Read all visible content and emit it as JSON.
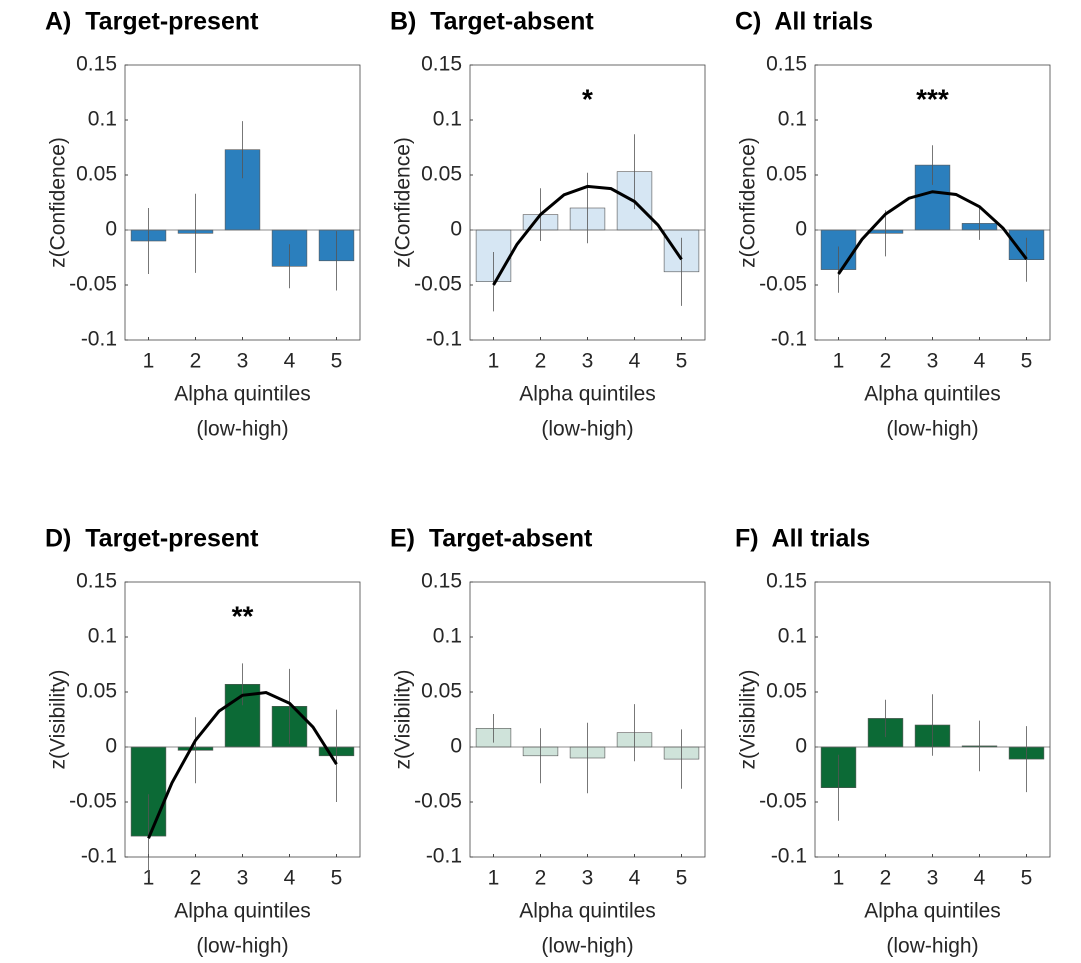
{
  "chart_data": [
    {
      "type": "bar",
      "title": "A)  Target-present",
      "ylabel": "z(Confidence)",
      "xlabel": [
        "Alpha quintiles",
        "(low-high)"
      ],
      "categories": [
        1,
        2,
        3,
        4,
        5
      ],
      "values": [
        -0.01,
        -0.003,
        0.073,
        -0.033,
        -0.028
      ],
      "errors": [
        0.03,
        0.036,
        0.026,
        0.02,
        0.027
      ],
      "color": "#2b7fbd",
      "ylim": [
        -0.1,
        0.15
      ],
      "yticks": [
        -0.1,
        -0.05,
        0,
        0.05,
        0.1,
        0.15
      ]
    },
    {
      "type": "bar",
      "title": "B)  Target-absent",
      "ylabel": "z(Confidence)",
      "xlabel": [
        "Alpha quintiles",
        "(low-high)"
      ],
      "categories": [
        1,
        2,
        3,
        4,
        5
      ],
      "values": [
        -0.047,
        0.014,
        0.02,
        0.053,
        -0.038
      ],
      "errors": [
        0.027,
        0.024,
        0.032,
        0.034,
        0.031
      ],
      "color": "#d6e6f3",
      "ylim": [
        -0.1,
        0.15
      ],
      "yticks": [
        -0.1,
        -0.05,
        0,
        0.05,
        0.1,
        0.15
      ],
      "annotation": "*",
      "fit": {
        "x": [
          1,
          1.5,
          2,
          2.5,
          3,
          3.5,
          4,
          4.5,
          5
        ],
        "y": [
          -0.05,
          -0.013,
          0.014,
          0.032,
          0.0396,
          0.0376,
          0.0259,
          0.0045,
          -0.0267
        ]
      }
    },
    {
      "type": "bar",
      "title": "C)  All trials",
      "ylabel": "z(Confidence)",
      "xlabel": [
        "Alpha quintiles",
        "(low-high)"
      ],
      "categories": [
        1,
        2,
        3,
        4,
        5
      ],
      "values": [
        -0.036,
        -0.003,
        0.059,
        0.006,
        -0.027
      ],
      "errors": [
        0.021,
        0.021,
        0.018,
        0.015,
        0.02
      ],
      "color": "#2b7fbd",
      "ylim": [
        -0.1,
        0.15
      ],
      "yticks": [
        -0.1,
        -0.05,
        0,
        0.05,
        0.1,
        0.15
      ],
      "annotation": "***",
      "fit": {
        "x": [
          1,
          1.5,
          2,
          2.5,
          3,
          3.5,
          4,
          4.5,
          5
        ],
        "y": [
          -0.04,
          -0.0085,
          0.0144,
          0.0289,
          0.0348,
          0.0323,
          0.0212,
          0.0017,
          -0.0264
        ]
      }
    },
    {
      "type": "bar",
      "title": "D)  Target-present",
      "ylabel": "z(Visibility)",
      "xlabel": [
        "Alpha quintiles",
        "(low-high)"
      ],
      "categories": [
        1,
        2,
        3,
        4,
        5
      ],
      "values": [
        -0.081,
        -0.003,
        0.057,
        0.037,
        -0.008
      ],
      "errors": [
        0.038,
        0.03,
        0.019,
        0.034,
        0.042
      ],
      "color": "#0c6a36",
      "ylim": [
        -0.1,
        0.15
      ],
      "yticks": [
        -0.1,
        -0.05,
        0,
        0.05,
        0.1,
        0.15
      ],
      "annotation": "**",
      "fit": {
        "x": [
          1,
          1.5,
          2,
          2.5,
          3,
          3.5,
          4,
          4.5,
          5
        ],
        "y": [
          -0.083,
          -0.0325,
          0.0061,
          0.0326,
          0.047,
          0.0495,
          0.0398,
          0.0181,
          -0.0156
        ]
      }
    },
    {
      "type": "bar",
      "title": "E)  Target-absent",
      "ylabel": "z(Visibility)",
      "xlabel": [
        "Alpha quintiles",
        "(low-high)"
      ],
      "categories": [
        1,
        2,
        3,
        4,
        5
      ],
      "values": [
        0.017,
        -0.008,
        -0.01,
        0.013,
        -0.011
      ],
      "errors": [
        0.013,
        0.025,
        0.032,
        0.026,
        0.027
      ],
      "color": "#cfe3da",
      "ylim": [
        -0.1,
        0.15
      ],
      "yticks": [
        -0.1,
        -0.05,
        0,
        0.05,
        0.1,
        0.15
      ]
    },
    {
      "type": "bar",
      "title": "F)  All trials",
      "ylabel": "z(Visibility)",
      "xlabel": [
        "Alpha quintiles",
        "(low-high)"
      ],
      "categories": [
        1,
        2,
        3,
        4,
        5
      ],
      "values": [
        -0.037,
        0.026,
        0.02,
        0.001,
        -0.011
      ],
      "errors": [
        0.03,
        0.017,
        0.028,
        0.023,
        0.03
      ],
      "color": "#0c6a36",
      "ylim": [
        -0.1,
        0.15
      ],
      "yticks": [
        -0.1,
        -0.05,
        0,
        0.05,
        0.1,
        0.15
      ]
    }
  ]
}
